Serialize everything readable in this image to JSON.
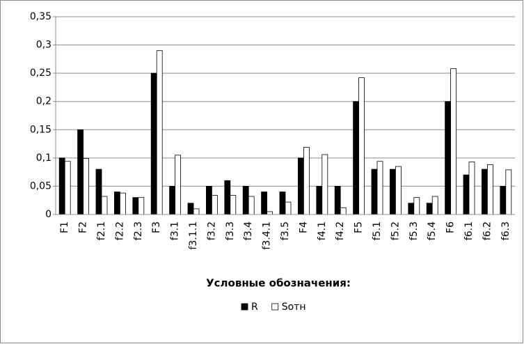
{
  "chart_data": {
    "type": "bar",
    "categories": [
      "F1",
      "F2",
      "f2.1",
      "f2.2",
      "f2.3",
      "F3",
      "f3.1",
      "f3.1.1",
      "f3.2",
      "f3.3",
      "f3.4",
      "f3.4.1",
      "f3.5",
      "F4",
      "f4.1",
      "f4.2",
      "F5",
      "f5.1",
      "f5.2",
      "f5.3",
      "f5.4",
      "F6",
      "f6.1",
      "f6.2",
      "f6.3"
    ],
    "series": [
      {
        "name": "R",
        "color": "#000000",
        "values": [
          0.1,
          0.15,
          0.08,
          0.04,
          0.03,
          0.25,
          0.05,
          0.02,
          0.05,
          0.06,
          0.05,
          0.04,
          0.04,
          0.1,
          0.05,
          0.05,
          0.2,
          0.08,
          0.08,
          0.02,
          0.02,
          0.2,
          0.07,
          0.08,
          0.05
        ]
      },
      {
        "name": "Sотн",
        "color": "#ffffff",
        "values": [
          0.094,
          0.099,
          0.032,
          0.038,
          0.03,
          0.29,
          0.105,
          0.01,
          0.034,
          0.034,
          0.032,
          0.005,
          0.022,
          0.119,
          0.106,
          0.012,
          0.242,
          0.094,
          0.085,
          0.03,
          0.032,
          0.258,
          0.093,
          0.088,
          0.079
        ]
      }
    ],
    "ylim": [
      0,
      0.35
    ],
    "yticks": [
      0,
      {
        "value": 0.05,
        "label": "0,05"
      },
      {
        "value": 0.1,
        "label": "0,1"
      },
      {
        "value": 0.15,
        "label": "0,15"
      },
      {
        "value": 0.2,
        "label": "0,2"
      },
      {
        "value": 0.25,
        "label": "0,25"
      },
      {
        "value": 0.3,
        "label": "0,3"
      },
      {
        "value": 0.35,
        "label": "0,35"
      }
    ],
    "grid": true,
    "legend": "bottom",
    "legend_title": "Условные обозначения:"
  }
}
